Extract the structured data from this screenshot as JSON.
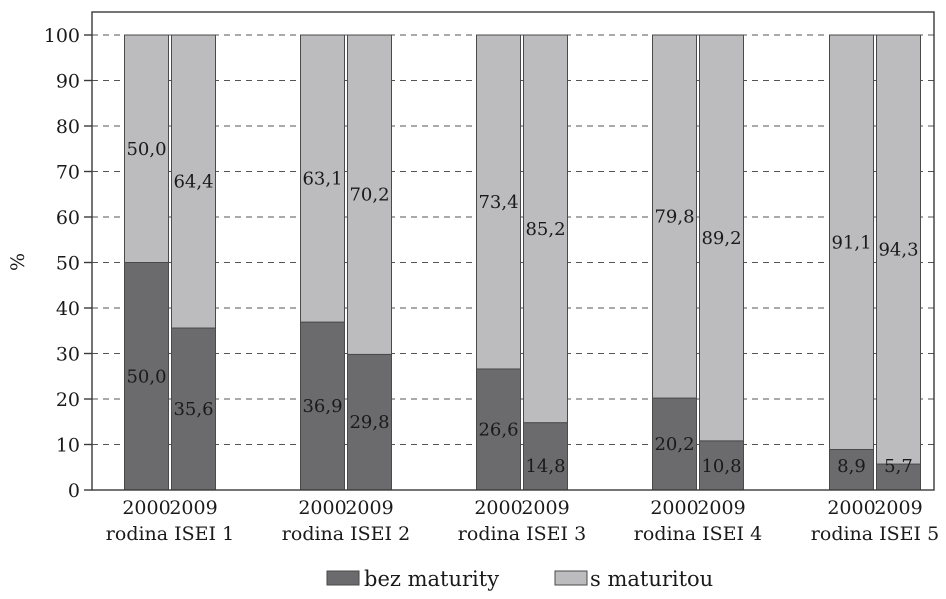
{
  "chart_data": {
    "type": "bar",
    "stacked": true,
    "ylabel": "%",
    "xlabel": "",
    "title": "",
    "ylim": [
      0,
      100
    ],
    "yticks": [
      0,
      10,
      20,
      30,
      40,
      50,
      60,
      70,
      80,
      90,
      100
    ],
    "grid": "horizontal dashed",
    "legend_position": "bottom-center",
    "groups": [
      {
        "name": "rodina ISEI 1",
        "bars": [
          {
            "year": "2000",
            "values": [
              50.0,
              50.0
            ],
            "labels": [
              "50,0",
              "50,0"
            ]
          },
          {
            "year": "2009",
            "values": [
              35.6,
              64.4
            ],
            "labels": [
              "35,6",
              "64,4"
            ]
          }
        ]
      },
      {
        "name": "rodina ISEI 2",
        "bars": [
          {
            "year": "2000",
            "values": [
              36.9,
              63.1
            ],
            "labels": [
              "36,9",
              "63,1"
            ]
          },
          {
            "year": "2009",
            "values": [
              29.8,
              70.2
            ],
            "labels": [
              "29,8",
              "70,2"
            ]
          }
        ]
      },
      {
        "name": "rodina ISEI 3",
        "bars": [
          {
            "year": "2000",
            "values": [
              26.6,
              73.4
            ],
            "labels": [
              "26,6",
              "73,4"
            ]
          },
          {
            "year": "2009",
            "values": [
              14.8,
              85.2
            ],
            "labels": [
              "14,8",
              "85,2"
            ]
          }
        ]
      },
      {
        "name": "rodina ISEI 4",
        "bars": [
          {
            "year": "2000",
            "values": [
              20.2,
              79.8
            ],
            "labels": [
              "20,2",
              "79,8"
            ]
          },
          {
            "year": "2009",
            "values": [
              10.8,
              89.2
            ],
            "labels": [
              "10,8",
              "89,2"
            ]
          }
        ]
      },
      {
        "name": "rodina ISEI 5",
        "bars": [
          {
            "year": "2000",
            "values": [
              8.9,
              91.1
            ],
            "labels": [
              "8,9",
              "91,1"
            ]
          },
          {
            "year": "2009",
            "values": [
              5.7,
              94.3
            ],
            "labels": [
              "5,7",
              "94,3"
            ]
          }
        ]
      }
    ],
    "series": [
      {
        "name": "bez maturity",
        "color": "#6b6b6d"
      },
      {
        "name": "s maturitou",
        "color": "#bcbcbf"
      }
    ]
  }
}
